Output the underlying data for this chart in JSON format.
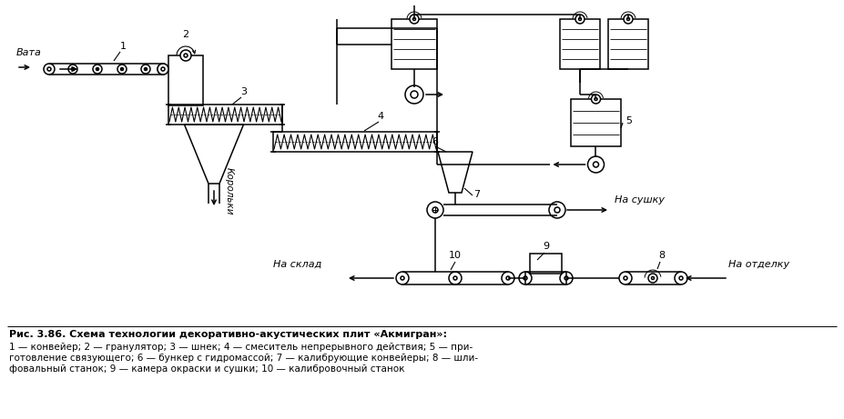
{
  "title": "Рис. 3.86. Схема технологии декоративно-акустических плит «Акмигран»:",
  "caption_line1": "1 — конвейер; 2 — гранулятор; 3 — шнек; 4 — смеситель непрерывного действия; 5 — при-",
  "caption_line2": "готовление связующего; 6 — бункер с гидромассой; 7 — калибрующие конвейеры; 8 — шли-",
  "caption_line3": "фовальный станок; 9 — камера окраски и сушки; 10 — калибровочный станок",
  "bg_color": "#ffffff",
  "line_color": "#000000"
}
